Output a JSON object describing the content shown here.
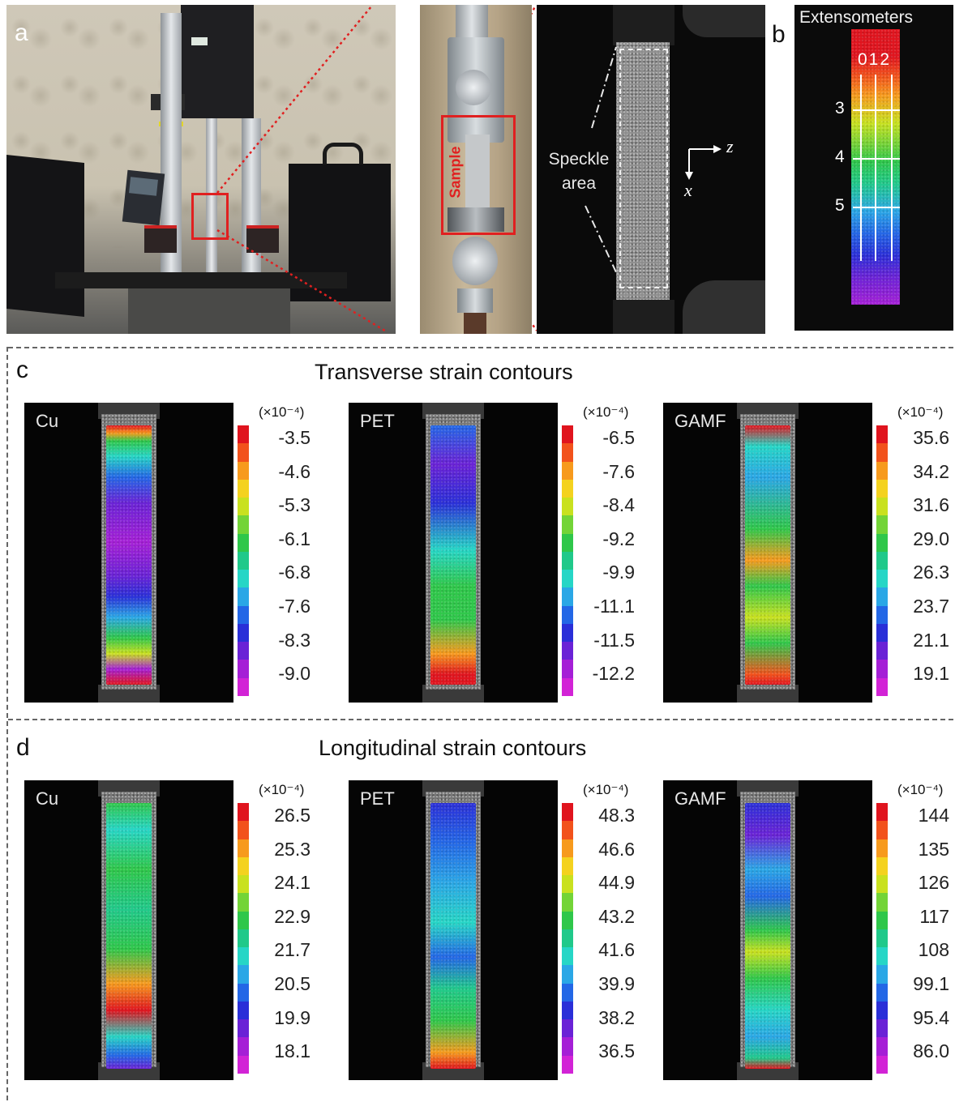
{
  "panel_letters": {
    "a": "a",
    "b": "b",
    "c": "c",
    "d": "d"
  },
  "panel_a": {
    "sample_label": "Sample",
    "speckle_label_line1": "Speckle",
    "speckle_label_line2": "area",
    "axis_z": "z",
    "axis_x": "x"
  },
  "panel_b": {
    "title": "Extensometers",
    "vertical_labels": "012",
    "horizontal_labels": [
      "3",
      "4",
      "5"
    ]
  },
  "panel_c": {
    "title": "Transverse strain contours",
    "unit": "(×10⁻⁴)",
    "plots": [
      {
        "material": "Cu",
        "ticks": [
          "-3.5",
          "-4.6",
          "-5.3",
          "-6.1",
          "-6.8",
          "-7.6",
          "-8.3",
          "-9.0"
        ]
      },
      {
        "material": "PET",
        "ticks": [
          "-6.5",
          "-7.6",
          "-8.4",
          "-9.2",
          "-9.9",
          "-11.1",
          "-11.5",
          "-12.2"
        ]
      },
      {
        "material": "GAMF",
        "ticks": [
          "35.6",
          "34.2",
          "31.6",
          "29.0",
          "26.3",
          "23.7",
          "21.1",
          "19.1"
        ]
      }
    ]
  },
  "panel_d": {
    "title": "Longitudinal strain contours",
    "unit": "(×10⁻⁴)",
    "plots": [
      {
        "material": "Cu",
        "ticks": [
          "26.5",
          "25.3",
          "24.1",
          "22.9",
          "21.7",
          "20.5",
          "19.9",
          "18.1"
        ]
      },
      {
        "material": "PET",
        "ticks": [
          "48.3",
          "46.6",
          "44.9",
          "43.2",
          "41.6",
          "39.9",
          "38.2",
          "36.5"
        ]
      },
      {
        "material": "GAMF",
        "ticks": [
          "144",
          "135",
          "126",
          "117",
          "108",
          "99.1",
          "95.4",
          "86.0"
        ]
      }
    ]
  },
  "colorbar_colors": [
    "#e0141e",
    "#f2521c",
    "#f79a1d",
    "#f4d21f",
    "#c9e11f",
    "#73d437",
    "#2fc74a",
    "#20c98a",
    "#26d6c6",
    "#2aa7e6",
    "#2367e6",
    "#2a2fd8",
    "#6a22d6",
    "#a51fd6",
    "#d223d6"
  ]
}
